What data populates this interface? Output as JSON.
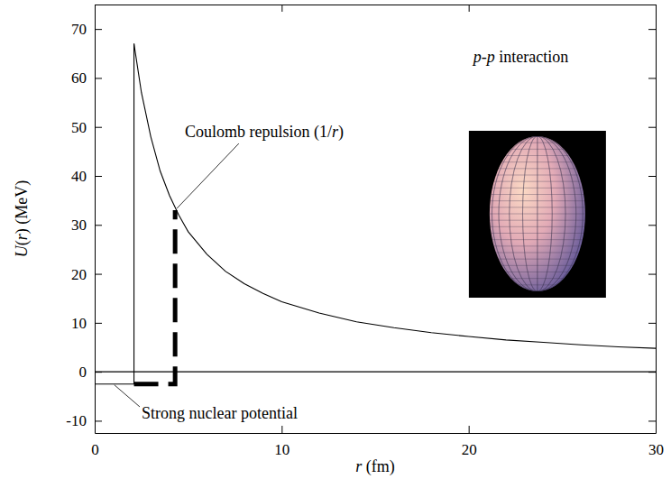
{
  "chart_data": {
    "type": "line",
    "title": "p-p interaction",
    "x_label": "r (fm)",
    "y_label": "U(r) (MeV)",
    "annotations": [
      "Coulomb repulsion (1/r)",
      "Strong nuclear potential"
    ],
    "xlim": [
      0,
      30
    ],
    "ylim": [
      -12.5,
      75
    ],
    "xticks": [
      0,
      10,
      20,
      30
    ],
    "yticks": [
      -10,
      0,
      10,
      20,
      30,
      40,
      50,
      60,
      70
    ],
    "grid": false,
    "series": [
      {
        "color": "#000000",
        "line_style": "solid",
        "x": [
          2.1,
          2.5,
          3,
          3.5,
          4,
          4.5,
          5,
          6,
          7,
          8,
          9,
          10,
          12,
          14,
          16,
          18,
          20,
          22,
          24,
          26,
          28,
          30
        ],
        "values": [
          67,
          57,
          48,
          41,
          36,
          32,
          28.6,
          24,
          20.5,
          18,
          16,
          14.3,
          12,
          10.2,
          9,
          8,
          7.2,
          6.5,
          6,
          5.5,
          5.1,
          4.8
        ]
      },
      {
        "color": "#000000",
        "line_style": "solid",
        "x": [
          0,
          2.1,
          2.1
        ],
        "values": [
          -2.5,
          -2.5,
          67
        ]
      },
      {
        "color": "#000000",
        "line_style": "dashed",
        "x": [
          2.1,
          4.3,
          4.3
        ],
        "values": [
          -2.5,
          -2.5,
          33
        ]
      },
      {
        "color": "#000000",
        "line_style": "solid",
        "x": [
          0,
          30
        ],
        "values": [
          0,
          0
        ]
      }
    ]
  }
}
